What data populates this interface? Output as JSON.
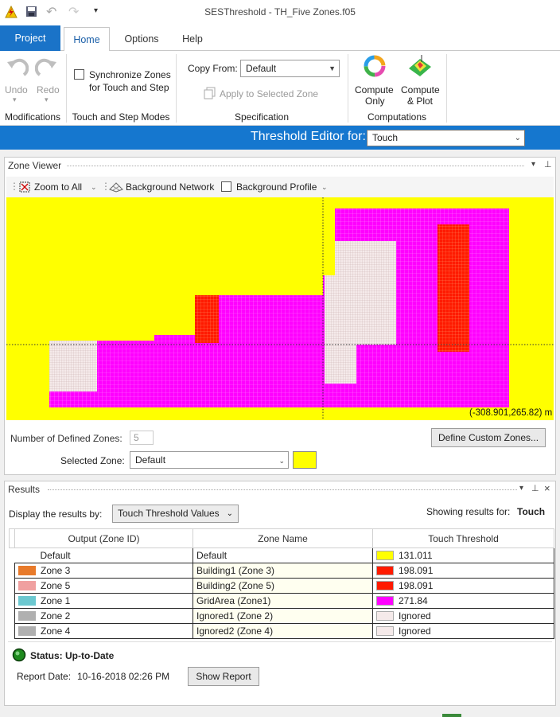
{
  "window": {
    "title": "SESThreshold - TH_Five Zones.f05"
  },
  "tabs": [
    {
      "label": "Project"
    },
    {
      "label": "Home"
    },
    {
      "label": "Options"
    },
    {
      "label": "Help"
    }
  ],
  "ribbon": {
    "undo_label": "Undo",
    "redo_label": "Redo",
    "modifications_label": "Modifications",
    "sync_label_1": "Synchronize Zones",
    "sync_label_2": "for Touch and Step",
    "touch_step_label": "Touch and Step Modes",
    "copy_from_label": "Copy From:",
    "copy_from_value": "Default",
    "apply_label": "Apply to Selected Zone",
    "specification_label": "Specification",
    "compute_only_1": "Compute",
    "compute_only_2": "Only",
    "compute_plot_1": "Compute",
    "compute_plot_2": "& Plot",
    "computations_label": "Computations"
  },
  "threshold_editor": {
    "label": "Threshold Editor for:",
    "value": "Touch"
  },
  "zone_viewer": {
    "title": "Zone Viewer",
    "zoom_label": "Zoom to All",
    "bg_network_label": "Background Network",
    "bg_profile_label": "Background Profile",
    "coords": "(-308.901,265.82) m",
    "num_zones_label": "Number of Defined Zones:",
    "num_zones_value": "5",
    "define_button": "Define Custom Zones...",
    "selected_zone_label": "Selected Zone:",
    "selected_zone_value": "Default",
    "selected_zone_color": "#ffff00"
  },
  "results": {
    "title": "Results",
    "display_by_label": "Display the results by:",
    "display_by_value": "Touch Threshold Values",
    "showing_label": "Showing results for:",
    "showing_value": "Touch",
    "columns": [
      "Output (Zone ID)",
      "Zone Name",
      "Touch Threshold"
    ],
    "rows": [
      {
        "output": "Default",
        "out_color": "",
        "name": "Default",
        "th_color": "#ffff00",
        "threshold": "131.011"
      },
      {
        "output": "Zone 3",
        "out_color": "#e87a2a",
        "name": "Building1 (Zone 3)",
        "th_color": "#ff1a00",
        "threshold": "198.091"
      },
      {
        "output": "Zone 5",
        "out_color": "#f0a0a0",
        "name": "Building2 (Zone 5)",
        "th_color": "#ff1a00",
        "threshold": "198.091"
      },
      {
        "output": "Zone 1",
        "out_color": "#6cc8d0",
        "name": "GridArea (Zone1)",
        "th_color": "#ff00ff",
        "threshold": "271.84"
      },
      {
        "output": "Zone 2",
        "out_color": "#b0b0b0",
        "name": "Ignored1 (Zone 2)",
        "th_color": "#f5eaea",
        "threshold": "Ignored"
      },
      {
        "output": "Zone 4",
        "out_color": "#b0b0b0",
        "name": "Ignored2 (Zone 4)",
        "th_color": "#f5eaea",
        "threshold": "Ignored"
      }
    ],
    "status_label": "Status:",
    "status_value": "Up-to-Date",
    "report_date_label": "Report Date:",
    "report_date_value": "10-16-2018 02:26 PM",
    "show_report_button": "Show Report"
  },
  "colors": {
    "accent": "#1577cf",
    "grid_zone": "#ff00ff",
    "building": "#ff1a00",
    "default_zone": "#ffff00",
    "ignored": "#f5eaea"
  }
}
